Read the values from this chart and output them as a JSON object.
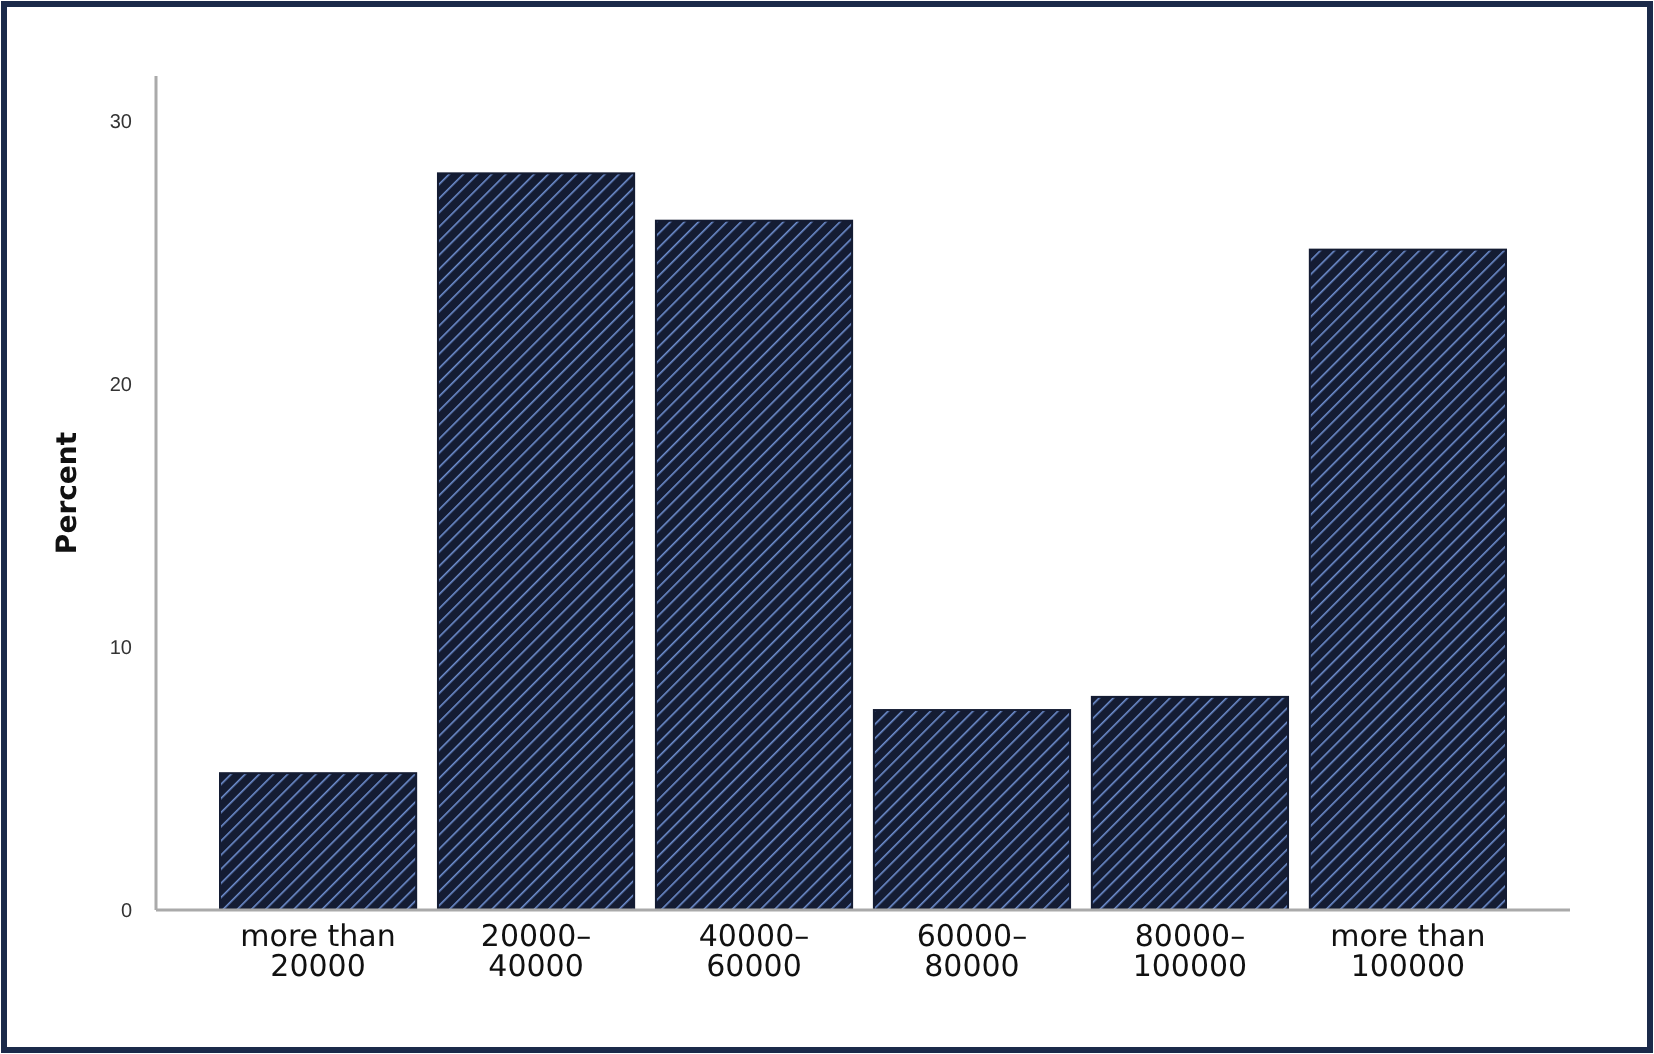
{
  "chart_data": {
    "type": "bar",
    "ylabel": "Percent",
    "categories": [
      "more than\n20000",
      "20000–\n40000",
      "40000–\n60000",
      "60000–\n80000",
      "80000–\n100000",
      "more than\n100000"
    ],
    "values": [
      5.2,
      28.0,
      26.2,
      7.6,
      8.1,
      25.1
    ],
    "color": "#141c33",
    "ylim": [
      0,
      31.7
    ],
    "yticks": [
      0,
      10,
      20,
      30
    ],
    "grid": false
  }
}
